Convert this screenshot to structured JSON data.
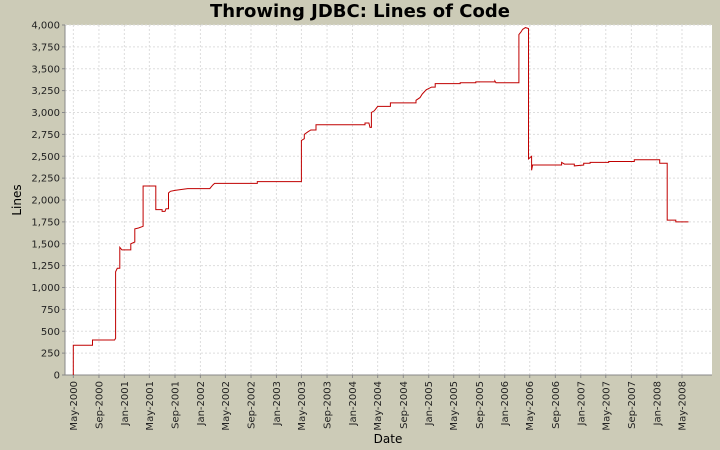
{
  "chart_data": {
    "type": "line",
    "title": "Throwing JDBC: Lines of Code",
    "xlabel": "Date",
    "ylabel": "Lines",
    "ylim": [
      0,
      4000
    ],
    "xlim": [
      "2000-03-22",
      "2008-09-22"
    ],
    "yticks": [
      0,
      250,
      500,
      750,
      1000,
      1250,
      1500,
      1750,
      2000,
      2250,
      2500,
      2750,
      3000,
      3250,
      3500,
      3750,
      4000
    ],
    "ytick_labels": [
      "0",
      "250",
      "500",
      "750",
      "1,000",
      "1,250",
      "1,500",
      "1,750",
      "2,000",
      "2,250",
      "2,500",
      "2,750",
      "3,000",
      "3,250",
      "3,500",
      "3,750",
      "4,000"
    ],
    "xticks": [
      "2000-05-01",
      "2000-09-01",
      "2001-01-01",
      "2001-05-01",
      "2001-09-01",
      "2002-01-01",
      "2002-05-01",
      "2002-09-01",
      "2003-01-01",
      "2003-05-01",
      "2003-09-01",
      "2004-01-01",
      "2004-05-01",
      "2004-09-01",
      "2005-01-01",
      "2005-05-01",
      "2005-09-01",
      "2006-01-01",
      "2006-05-01",
      "2006-09-01",
      "2007-01-01",
      "2007-05-01",
      "2007-09-01",
      "2008-01-01",
      "2008-05-01"
    ],
    "xtick_labels": [
      "May-2000",
      "Sep-2000",
      "Jan-2001",
      "May-2001",
      "Sep-2001",
      "Jan-2002",
      "May-2002",
      "Sep-2002",
      "Jan-2003",
      "May-2003",
      "Sep-2003",
      "Jan-2004",
      "May-2004",
      "Sep-2004",
      "Jan-2005",
      "May-2005",
      "Sep-2005",
      "Jan-2006",
      "May-2006",
      "Sep-2006",
      "Jan-2007",
      "May-2007",
      "Sep-2007",
      "Jan-2008",
      "May-2008"
    ],
    "grid": true,
    "line_color": "#c00000",
    "series": [
      {
        "step": true,
        "points": [
          [
            "2000-05-01",
            0
          ],
          [
            "2000-05-01",
            340
          ],
          [
            "2000-08-01",
            340
          ],
          [
            "2000-08-01",
            400
          ],
          [
            "2000-11-15",
            400
          ],
          [
            "2000-11-20",
            420
          ],
          [
            "2000-11-20",
            1180
          ],
          [
            "2000-11-28",
            1220
          ],
          [
            "2000-12-10",
            1220
          ],
          [
            "2000-12-10",
            1460
          ],
          [
            "2000-12-20",
            1430
          ],
          [
            "2001-02-01",
            1430
          ],
          [
            "2001-02-01",
            1500
          ],
          [
            "2001-02-20",
            1520
          ],
          [
            "2001-02-20",
            1670
          ],
          [
            "2001-03-10",
            1680
          ],
          [
            "2001-04-01",
            1700
          ],
          [
            "2001-04-01",
            2160
          ],
          [
            "2001-06-01",
            2160
          ],
          [
            "2001-06-01",
            1890
          ],
          [
            "2001-07-01",
            1890
          ],
          [
            "2001-07-01",
            1870
          ],
          [
            "2001-07-15",
            1870
          ],
          [
            "2001-07-20",
            1900
          ],
          [
            "2001-08-01",
            1900
          ],
          [
            "2001-08-01",
            2080
          ],
          [
            "2001-08-10",
            2100
          ],
          [
            "2001-09-01",
            2110
          ],
          [
            "2001-10-01",
            2120
          ],
          [
            "2001-11-01",
            2130
          ],
          [
            "2002-02-15",
            2130
          ],
          [
            "2002-03-01",
            2170
          ],
          [
            "2002-03-10",
            2190
          ],
          [
            "2002-10-01",
            2190
          ],
          [
            "2002-10-01",
            2210
          ],
          [
            "2003-05-01",
            2210
          ],
          [
            "2003-05-01",
            2680
          ],
          [
            "2003-05-15",
            2700
          ],
          [
            "2003-05-15",
            2750
          ],
          [
            "2003-06-01",
            2780
          ],
          [
            "2003-06-15",
            2800
          ],
          [
            "2003-07-10",
            2800
          ],
          [
            "2003-07-10",
            2860
          ],
          [
            "2004-03-01",
            2860
          ],
          [
            "2004-03-01",
            2880
          ],
          [
            "2004-03-20",
            2880
          ],
          [
            "2004-03-25",
            2830
          ],
          [
            "2004-04-01",
            2830
          ],
          [
            "2004-04-01",
            3000
          ],
          [
            "2004-04-15",
            3020
          ],
          [
            "2004-05-01",
            3070
          ],
          [
            "2004-07-01",
            3070
          ],
          [
            "2004-07-01",
            3110
          ],
          [
            "2004-11-01",
            3110
          ],
          [
            "2004-11-01",
            3140
          ],
          [
            "2004-11-20",
            3170
          ],
          [
            "2004-12-01",
            3210
          ],
          [
            "2004-12-20",
            3260
          ],
          [
            "2005-01-15",
            3290
          ],
          [
            "2005-02-01",
            3290
          ],
          [
            "2005-02-01",
            3330
          ],
          [
            "2005-06-01",
            3330
          ],
          [
            "2005-06-01",
            3340
          ],
          [
            "2005-08-15",
            3340
          ],
          [
            "2005-08-15",
            3350
          ],
          [
            "2005-11-15",
            3350
          ],
          [
            "2005-11-15",
            3360
          ],
          [
            "2005-11-20",
            3340
          ],
          [
            "2006-03-10",
            3340
          ],
          [
            "2006-03-10",
            3890
          ],
          [
            "2006-03-20",
            3920
          ],
          [
            "2006-03-28",
            3950
          ],
          [
            "2006-04-10",
            3970
          ],
          [
            "2006-04-25",
            3960
          ],
          [
            "2006-04-25",
            2470
          ],
          [
            "2006-05-10",
            2500
          ],
          [
            "2006-05-10",
            2340
          ],
          [
            "2006-05-15",
            2400
          ],
          [
            "2006-10-01",
            2400
          ],
          [
            "2006-10-01",
            2430
          ],
          [
            "2006-10-15",
            2410
          ],
          [
            "2006-12-01",
            2410
          ],
          [
            "2006-12-01",
            2390
          ],
          [
            "2007-01-15",
            2400
          ],
          [
            "2007-01-15",
            2420
          ],
          [
            "2007-02-15",
            2420
          ],
          [
            "2007-02-15",
            2430
          ],
          [
            "2007-05-15",
            2430
          ],
          [
            "2007-05-15",
            2440
          ],
          [
            "2007-09-15",
            2440
          ],
          [
            "2007-09-15",
            2460
          ],
          [
            "2008-01-15",
            2460
          ],
          [
            "2008-01-15",
            2420
          ],
          [
            "2008-02-20",
            2420
          ],
          [
            "2008-02-20",
            1770
          ],
          [
            "2008-04-01",
            1770
          ],
          [
            "2008-04-01",
            1750
          ],
          [
            "2008-06-01",
            1750
          ]
        ]
      }
    ]
  }
}
